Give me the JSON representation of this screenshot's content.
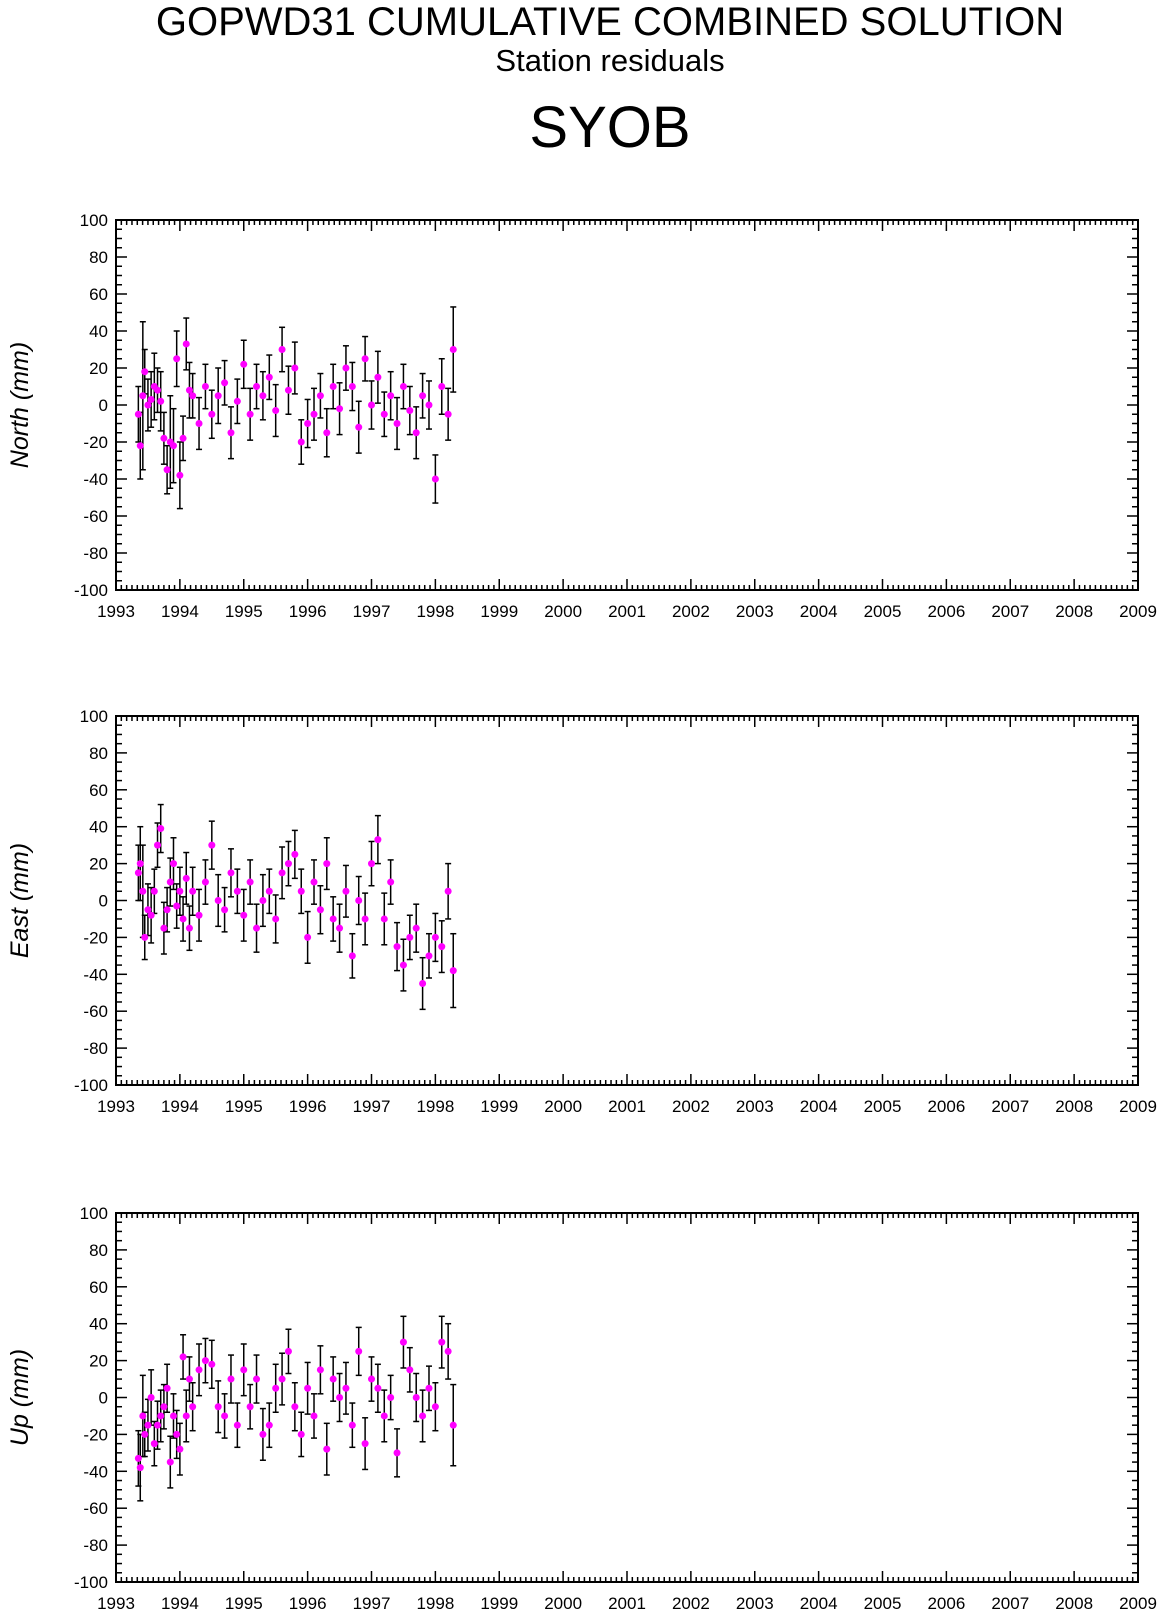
{
  "header": {
    "title": "GOPWD31 CUMULATIVE COMBINED SOLUTION",
    "subtitle": "Station residuals",
    "station": "SYOB"
  },
  "colors": {
    "point": "#ff00ff",
    "errorbar": "#000000",
    "axis": "#000000",
    "background": "#ffffff"
  },
  "chart_data": [
    {
      "type": "scatter",
      "ylabel": "North (mm)",
      "xlim": [
        1993,
        2009
      ],
      "ylim": [
        -100,
        100
      ],
      "x_ticks": [
        "1993",
        "1994",
        "1995",
        "1996",
        "1997",
        "1998",
        "1999",
        "2000",
        "2001",
        "2002",
        "2003",
        "2004",
        "2005",
        "2006",
        "2007",
        "2008",
        "2009"
      ],
      "y_ticks": [
        "100",
        "80",
        "60",
        "40",
        "20",
        "0",
        "-20",
        "-40",
        "-60",
        "-80",
        "-100"
      ],
      "grid": false,
      "error_bars": true,
      "x": [
        1993.35,
        1993.38,
        1993.42,
        1993.45,
        1993.5,
        1993.55,
        1993.6,
        1993.65,
        1993.7,
        1993.75,
        1993.8,
        1993.85,
        1993.9,
        1993.95,
        1994.0,
        1994.05,
        1994.1,
        1994.15,
        1994.2,
        1994.3,
        1994.4,
        1994.5,
        1994.6,
        1994.7,
        1994.8,
        1994.9,
        1995.0,
        1995.1,
        1995.2,
        1995.3,
        1995.4,
        1995.5,
        1995.6,
        1995.7,
        1995.8,
        1995.9,
        1996.0,
        1996.1,
        1996.2,
        1996.3,
        1996.4,
        1996.5,
        1996.6,
        1996.7,
        1996.8,
        1996.9,
        1997.0,
        1997.1,
        1997.2,
        1997.3,
        1997.4,
        1997.5,
        1997.6,
        1997.7,
        1997.8,
        1997.9,
        1998.0,
        1998.1,
        1998.2,
        1998.28
      ],
      "y": [
        -5,
        -22,
        5,
        18,
        0,
        3,
        10,
        8,
        2,
        -18,
        -35,
        -20,
        -22,
        25,
        -38,
        -18,
        33,
        8,
        5,
        -10,
        10,
        -5,
        5,
        12,
        -15,
        2,
        22,
        -5,
        10,
        5,
        15,
        -3,
        30,
        8,
        20,
        -20,
        -10,
        -5,
        5,
        -15,
        10,
        -2,
        20,
        10,
        -12,
        25,
        0,
        15,
        -5,
        5,
        -10,
        10,
        -3,
        -15,
        5,
        0,
        -40,
        10,
        -5,
        30
      ],
      "y_err": [
        15,
        18,
        40,
        12,
        14,
        15,
        18,
        12,
        16,
        14,
        13,
        25,
        20,
        15,
        18,
        12,
        14,
        15,
        12,
        14,
        12,
        13,
        15,
        12,
        14,
        12,
        13,
        14,
        12,
        13,
        12,
        14,
        12,
        13,
        14,
        12,
        13,
        14,
        12,
        13,
        12,
        14,
        12,
        13,
        14,
        12,
        13,
        14,
        12,
        13,
        14,
        12,
        13,
        14,
        12,
        13,
        13,
        15,
        14,
        23
      ]
    },
    {
      "type": "scatter",
      "ylabel": "East (mm)",
      "xlim": [
        1993,
        2009
      ],
      "ylim": [
        -100,
        100
      ],
      "x_ticks": [
        "1993",
        "1994",
        "1995",
        "1996",
        "1997",
        "1998",
        "1999",
        "2000",
        "2001",
        "2002",
        "2003",
        "2004",
        "2005",
        "2006",
        "2007",
        "2008",
        "2009"
      ],
      "y_ticks": [
        "100",
        "80",
        "60",
        "40",
        "20",
        "0",
        "-20",
        "-40",
        "-60",
        "-80",
        "-100"
      ],
      "grid": false,
      "error_bars": true,
      "x": [
        1993.35,
        1993.38,
        1993.42,
        1993.45,
        1993.5,
        1993.55,
        1993.6,
        1993.65,
        1993.7,
        1993.75,
        1993.8,
        1993.85,
        1993.9,
        1993.95,
        1994.0,
        1994.05,
        1994.1,
        1994.15,
        1994.2,
        1994.3,
        1994.4,
        1994.5,
        1994.6,
        1994.7,
        1994.8,
        1994.9,
        1995.0,
        1995.1,
        1995.2,
        1995.3,
        1995.4,
        1995.5,
        1995.6,
        1995.7,
        1995.8,
        1995.9,
        1996.0,
        1996.1,
        1996.2,
        1996.3,
        1996.4,
        1996.5,
        1996.6,
        1996.7,
        1996.8,
        1996.9,
        1997.0,
        1997.1,
        1997.2,
        1997.3,
        1997.4,
        1997.5,
        1997.6,
        1997.7,
        1997.8,
        1997.9,
        1998.0,
        1998.1,
        1998.2,
        1998.28
      ],
      "y": [
        15,
        20,
        5,
        -20,
        -5,
        -8,
        5,
        30,
        39,
        -15,
        -5,
        10,
        20,
        -3,
        5,
        -10,
        12,
        -15,
        5,
        -8,
        10,
        30,
        0,
        -5,
        15,
        5,
        -8,
        10,
        -15,
        0,
        5,
        -10,
        15,
        20,
        25,
        5,
        -20,
        10,
        -5,
        20,
        -10,
        -15,
        5,
        -30,
        0,
        -10,
        20,
        33,
        -10,
        10,
        -25,
        -35,
        -20,
        -15,
        -45,
        -30,
        -20,
        -25,
        5,
        -38
      ],
      "y_err": [
        15,
        20,
        25,
        12,
        14,
        15,
        12,
        12,
        13,
        14,
        12,
        13,
        14,
        12,
        13,
        12,
        14,
        12,
        13,
        14,
        12,
        13,
        14,
        12,
        13,
        12,
        14,
        12,
        13,
        14,
        12,
        13,
        14,
        12,
        13,
        12,
        14,
        12,
        13,
        14,
        12,
        13,
        14,
        12,
        13,
        14,
        12,
        13,
        14,
        12,
        13,
        14,
        12,
        13,
        14,
        12,
        13,
        14,
        15,
        20
      ]
    },
    {
      "type": "scatter",
      "ylabel": "Up (mm)",
      "xlim": [
        1993,
        2009
      ],
      "ylim": [
        -100,
        100
      ],
      "x_ticks": [
        "1993",
        "1994",
        "1995",
        "1996",
        "1997",
        "1998",
        "1999",
        "2000",
        "2001",
        "2002",
        "2003",
        "2004",
        "2005",
        "2006",
        "2007",
        "2008",
        "2009"
      ],
      "y_ticks": [
        "100",
        "80",
        "60",
        "40",
        "20",
        "0",
        "-20",
        "-40",
        "-60",
        "-80",
        "-100"
      ],
      "grid": false,
      "error_bars": true,
      "x": [
        1993.35,
        1993.38,
        1993.42,
        1993.45,
        1993.5,
        1993.55,
        1993.6,
        1993.65,
        1993.7,
        1993.75,
        1993.8,
        1993.85,
        1993.9,
        1993.95,
        1994.0,
        1994.05,
        1994.1,
        1994.15,
        1994.2,
        1994.3,
        1994.4,
        1994.5,
        1994.6,
        1994.7,
        1994.8,
        1994.9,
        1995.0,
        1995.1,
        1995.2,
        1995.3,
        1995.4,
        1995.5,
        1995.6,
        1995.7,
        1995.8,
        1995.9,
        1996.0,
        1996.1,
        1996.2,
        1996.3,
        1996.4,
        1996.5,
        1996.6,
        1996.7,
        1996.8,
        1996.9,
        1997.0,
        1997.1,
        1997.2,
        1997.3,
        1997.4,
        1997.5,
        1997.6,
        1997.7,
        1997.8,
        1997.9,
        1998.0,
        1998.1,
        1998.2,
        1998.28
      ],
      "y": [
        -33,
        -38,
        -10,
        -20,
        -15,
        0,
        -25,
        -15,
        -10,
        -5,
        5,
        -35,
        -10,
        -20,
        -28,
        22,
        -10,
        10,
        -5,
        15,
        20,
        18,
        -5,
        -10,
        10,
        -15,
        15,
        -5,
        10,
        -20,
        -15,
        5,
        10,
        25,
        -5,
        -20,
        5,
        -10,
        15,
        -28,
        10,
        0,
        5,
        -15,
        25,
        -25,
        10,
        5,
        -10,
        0,
        -30,
        30,
        15,
        0,
        -10,
        5,
        -5,
        30,
        25,
        -15
      ],
      "y_err": [
        15,
        18,
        22,
        12,
        14,
        15,
        12,
        13,
        14,
        12,
        13,
        14,
        12,
        13,
        14,
        12,
        14,
        12,
        13,
        14,
        12,
        13,
        14,
        12,
        13,
        12,
        14,
        12,
        13,
        14,
        12,
        13,
        14,
        12,
        13,
        12,
        14,
        12,
        13,
        14,
        12,
        13,
        14,
        12,
        13,
        14,
        12,
        13,
        14,
        12,
        13,
        14,
        12,
        13,
        14,
        12,
        13,
        14,
        15,
        22
      ]
    }
  ]
}
